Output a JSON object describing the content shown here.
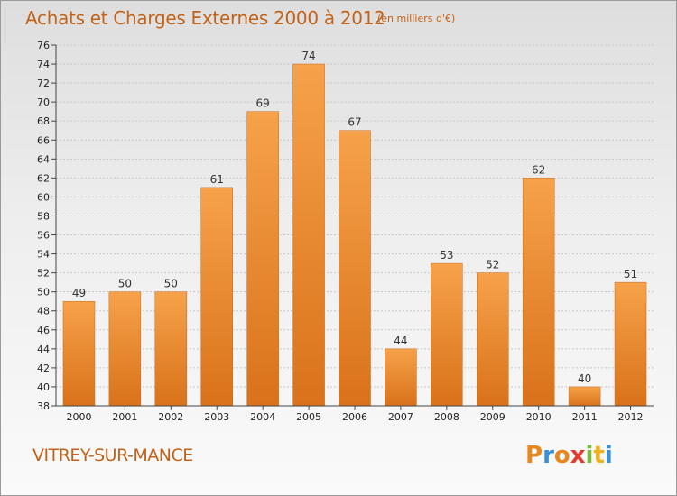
{
  "header": {
    "title": "Achats et Charges Externes 2000 à 2012",
    "subtitle": "(en milliers d'€)"
  },
  "footer": {
    "commune": "VITREY-SUR-MANCE",
    "logo_text": "Proxiti",
    "logo_colors": [
      "#e8861f",
      "#3b8fd6",
      "#e8861f",
      "#e23a2e",
      "#7ab83a",
      "#f0b21c",
      "#3b8fd6"
    ]
  },
  "colors": {
    "bar": "#f0922e",
    "bar_dark": "#d9721a",
    "text_accent": "#c1631a"
  },
  "chart_data": {
    "type": "bar",
    "title": "Achats et Charges Externes 2000 à 2012",
    "subtitle": "(en milliers d'€)",
    "categories": [
      "2000",
      "2001",
      "2002",
      "2003",
      "2004",
      "2005",
      "2006",
      "2007",
      "2008",
      "2009",
      "2010",
      "2011",
      "2012"
    ],
    "values": [
      49,
      50,
      50,
      61,
      69,
      74,
      67,
      44,
      53,
      52,
      62,
      40,
      51
    ],
    "xlabel": "",
    "ylabel": "",
    "ylim": [
      38,
      76
    ],
    "ytick_step": 2,
    "grid": "horizontal",
    "data_labels": true
  }
}
